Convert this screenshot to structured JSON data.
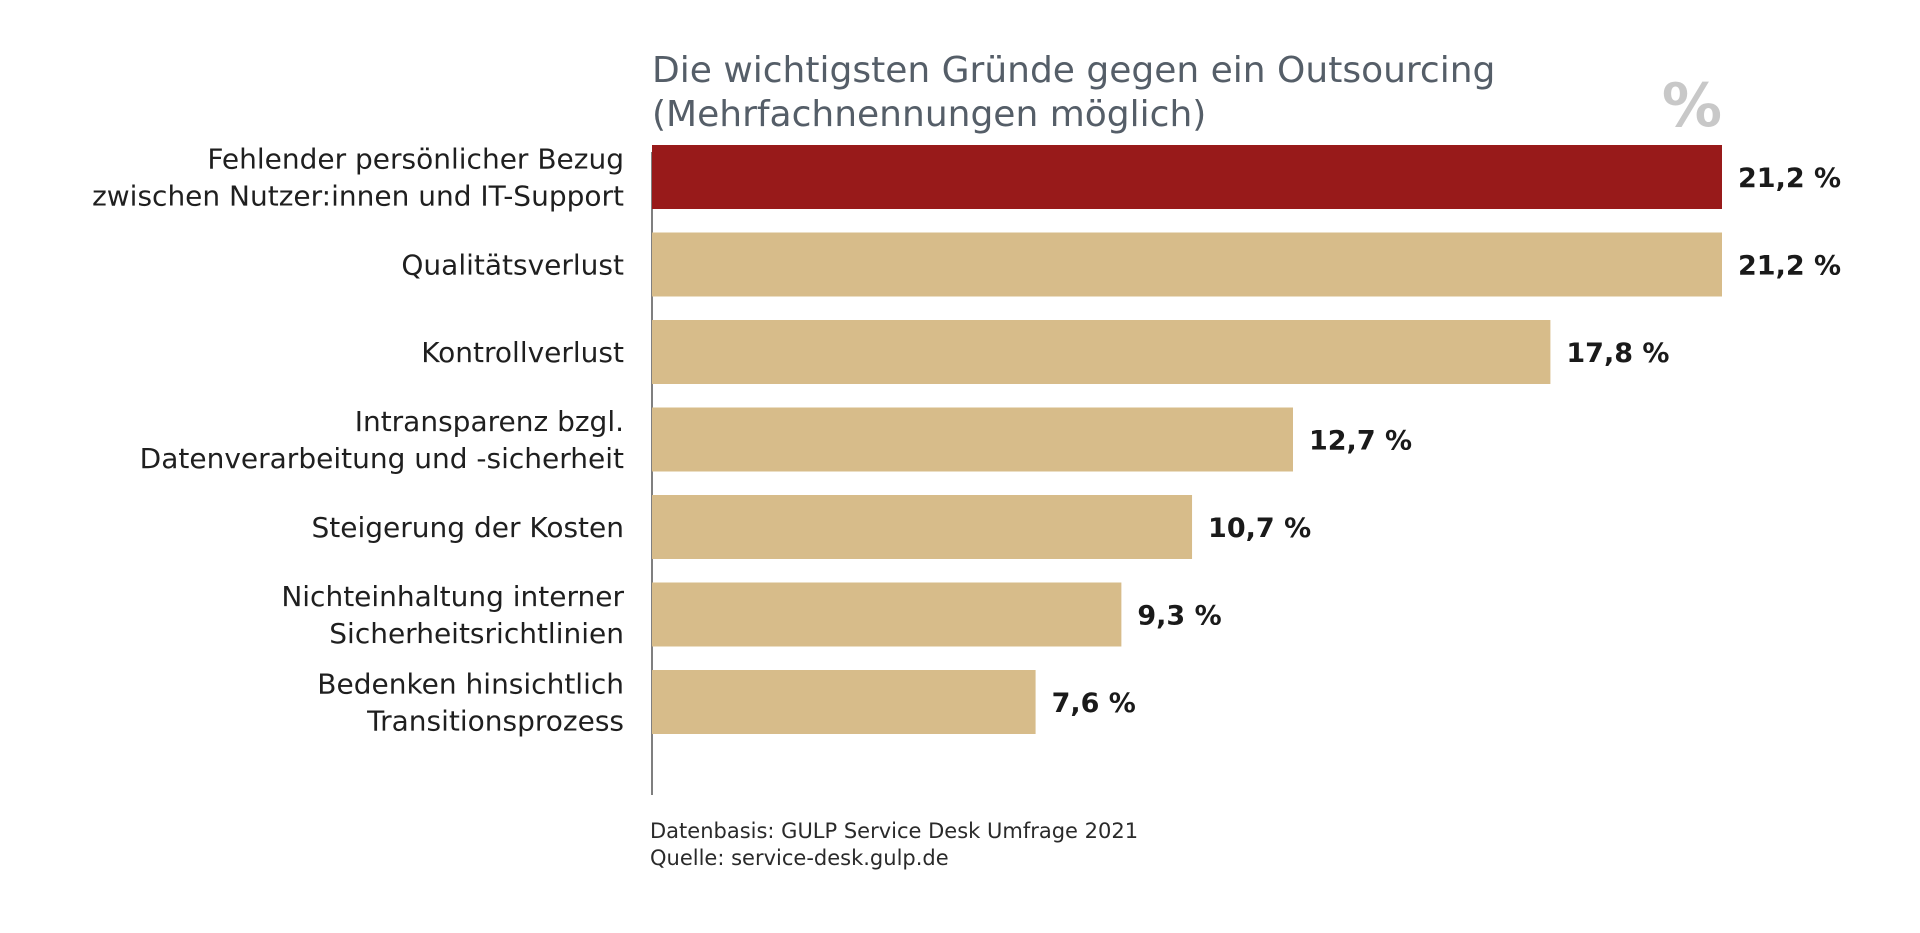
{
  "chart_data": {
    "type": "bar",
    "orientation": "horizontal",
    "title": "Die wichtigsten Gründe gegen ein Outsourcing",
    "subtitle": "(Mehrfachnennungen möglich)",
    "unit_label": "%",
    "categories": [
      [
        "Fehlender persönlicher Bezug",
        "zwischen Nutzer:innen und IT-Support"
      ],
      [
        "Qualitätsverlust"
      ],
      [
        "Kontrollverlust"
      ],
      [
        "Intransparenz bzgl.",
        "Datenverarbeitung und -sicherheit"
      ],
      [
        "Steigerung der Kosten"
      ],
      [
        "Nichteinhaltung interner",
        "Sicherheitsrichtlinien"
      ],
      [
        "Bedenken hinsichtlich",
        "Transitionsprozess"
      ]
    ],
    "values": [
      21.2,
      21.2,
      17.8,
      12.7,
      10.7,
      9.3,
      7.6
    ],
    "value_labels": [
      "21,2 %",
      "21,2 %",
      "17,8 %",
      "12,7 %",
      "10,7 %",
      "9,3 %",
      "7,6 %"
    ],
    "highlight_index": 0,
    "xlim": [
      0,
      21.2
    ],
    "grid": false,
    "legend": "none"
  },
  "colors": {
    "highlight": "#981a1a",
    "bar": "#d7bc8a",
    "axis": "#555555"
  },
  "footer": {
    "source_line_1": "Datenbasis: GULP Service Desk Umfrage 2021",
    "source_line_2": "Quelle: service-desk.gulp.de"
  }
}
